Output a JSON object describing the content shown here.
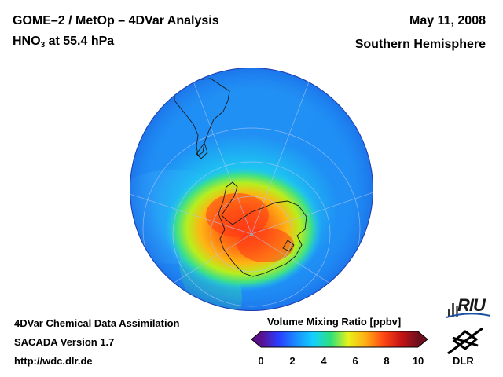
{
  "header": {
    "title": "GOME–2 / MetOp – 4DVar Analysis",
    "species_prefix": "HNO",
    "species_subscript": "3",
    "species_suffix": " at 55.4 hPa",
    "date": "May 11, 2008",
    "hemisphere": "Southern Hemisphere"
  },
  "footer": {
    "line1": "4DVar Chemical Data Assimilation",
    "line2": "SACADA Version 1.7",
    "line3": "http://wdc.dlr.de"
  },
  "colorbar": {
    "title": "Volume Mixing Ratio [ppbv]",
    "min": 0,
    "max": 10,
    "ticks": [
      "0",
      "2",
      "4",
      "6",
      "8",
      "10"
    ],
    "colors": [
      "#5a0f8c",
      "#2a3cff",
      "#1a8cff",
      "#13d0ff",
      "#2ee07a",
      "#e8f21a",
      "#ffad14",
      "#ff4a14",
      "#c81414",
      "#6e0f1e"
    ]
  },
  "map": {
    "projection": "orthographic south polar",
    "background_value_ppbv": 2.5,
    "peak_value_ppbv": 8.5
  },
  "logos": {
    "riu": "RIU",
    "dlr": "DLR"
  }
}
